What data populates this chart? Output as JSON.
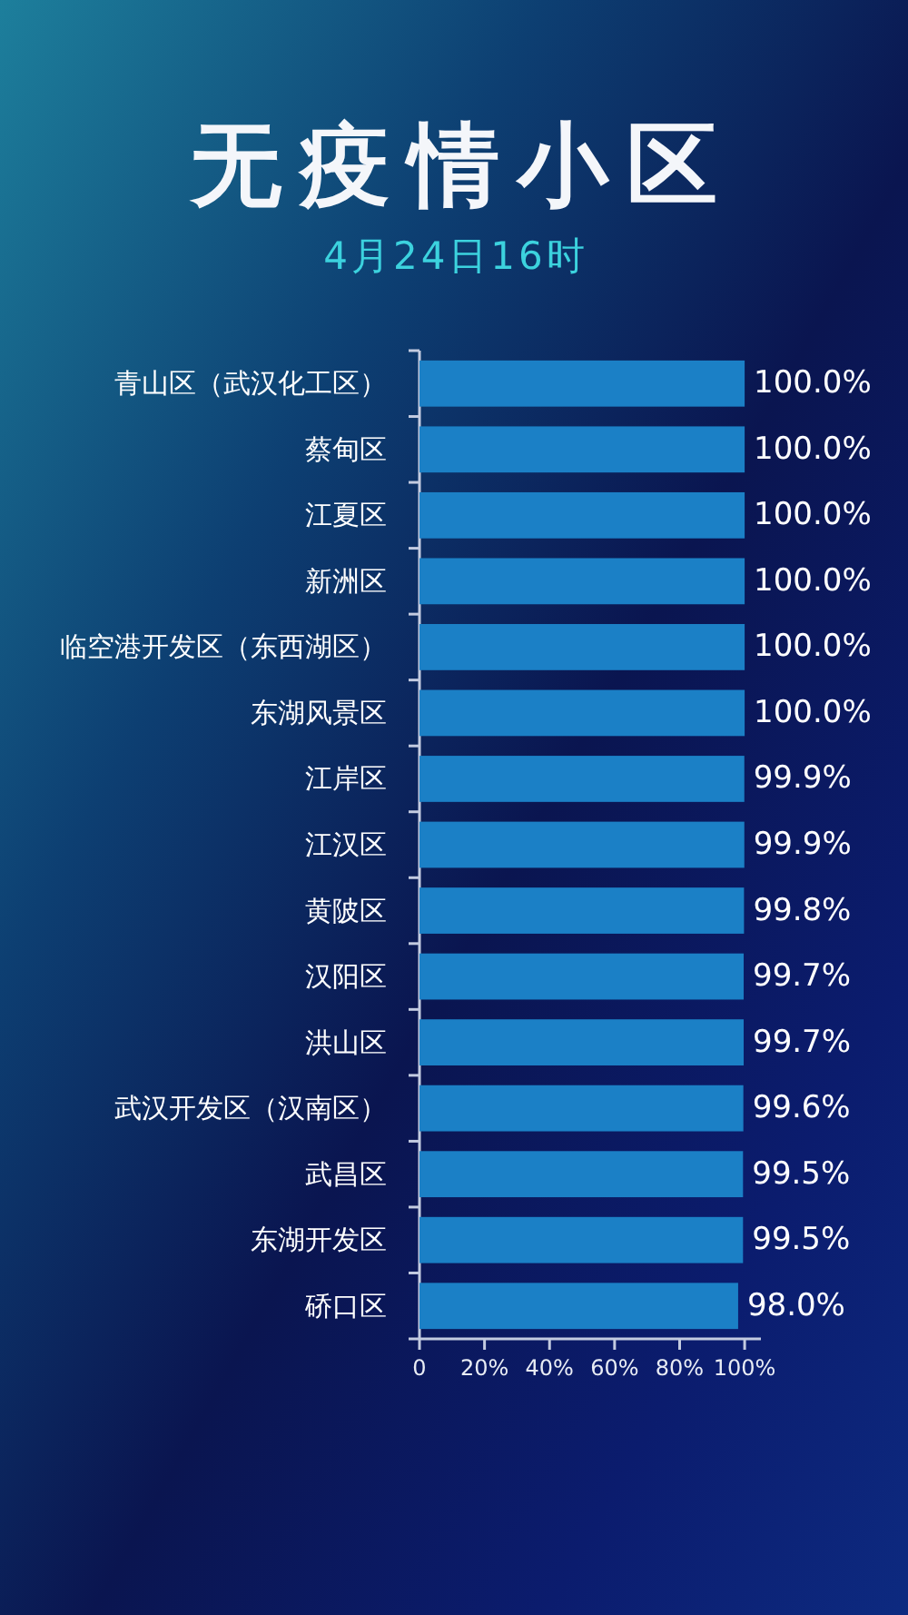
{
  "chart_data": {
    "type": "bar",
    "orientation": "horizontal",
    "title": "无疫情小区",
    "subtitle": "4月24日16时",
    "categories": [
      "青山区（武汉化工区）",
      "蔡甸区",
      "江夏区",
      "新洲区",
      "临空港开发区（东西湖区）",
      "东湖风景区",
      "江岸区",
      "江汉区",
      "黄陂区",
      "汉阳区",
      "洪山区",
      "武汉开发区（汉南区）",
      "武昌区",
      "东湖开发区",
      "硚口区"
    ],
    "values": [
      100,
      100,
      100,
      100,
      100,
      100,
      99.9,
      99.9,
      99.8,
      99.7,
      99.7,
      99.6,
      99.5,
      99.5,
      98.0
    ],
    "value_labels": [
      "100.0%",
      "100.0%",
      "100.0%",
      "100.0%",
      "100.0%",
      "100.0%",
      "99.9%",
      "99.9%",
      "99.8%",
      "99.7%",
      "99.7%",
      "99.6%",
      "99.5%",
      "99.5%",
      "98.0%"
    ],
    "color": "#1b80c6",
    "xlim": [
      0,
      105
    ],
    "xticks": [
      0,
      {
        "value": 20,
        "label": "20%"
      },
      {
        "value": 40,
        "label": "40%"
      },
      {
        "value": 60,
        "label": "60%"
      },
      {
        "value": 80,
        "label": "80%"
      },
      {
        "value": 100,
        "label": "100%"
      }
    ]
  }
}
